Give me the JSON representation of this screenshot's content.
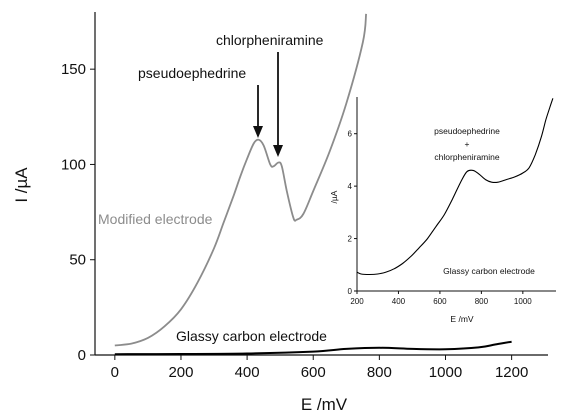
{
  "chart_data": [
    {
      "type": "line",
      "xlabel": "E /mV",
      "ylabel": "I /µA",
      "xlim": [
        -60,
        1310
      ],
      "ylim": [
        0,
        180
      ],
      "xticks": [
        0,
        200,
        400,
        600,
        800,
        1000,
        1200
      ],
      "yticks": [
        0,
        50,
        100,
        150
      ],
      "annotations": [
        "pseudoephedrine",
        "chlorpheniramine"
      ],
      "series": [
        {
          "name": "Modified electrode",
          "color": "#8c8c8c",
          "x": [
            0,
            50,
            100,
            150,
            200,
            250,
            300,
            330,
            360,
            380,
            400,
            420,
            435,
            450,
            470,
            480,
            495,
            505,
            520,
            540,
            550,
            570,
            600,
            650,
            700,
            750,
            760
          ],
          "y": [
            5,
            6,
            9,
            15,
            24,
            38,
            56,
            70,
            84,
            94,
            103,
            111,
            113,
            110,
            100,
            99,
            101,
            99,
            86,
            72,
            71,
            74,
            86,
            107,
            132,
            164,
            179
          ]
        },
        {
          "name": "Glassy carbon electrode",
          "color": "#000000",
          "x": [
            0,
            200,
            400,
            600,
            700,
            800,
            900,
            1000,
            1100,
            1150,
            1200
          ],
          "y": [
            0.4,
            0.5,
            0.8,
            1.8,
            3.2,
            3.8,
            3.2,
            3.0,
            4.0,
            5.5,
            7.0
          ]
        }
      ]
    },
    {
      "type": "line",
      "xlabel": "E /mV",
      "ylabel": "/µA",
      "xlim": [
        200,
        1160
      ],
      "ylim": [
        0,
        7.4
      ],
      "xticks": [
        200,
        400,
        600,
        800,
        1000
      ],
      "yticks": [
        0,
        2,
        4,
        6
      ],
      "annotation": [
        "pseudoephedrine",
        "+",
        "chlorpheniramine"
      ],
      "series": [
        {
          "name": "Glassy carbon electrode",
          "color": "#000000",
          "x": [
            200,
            220,
            260,
            300,
            340,
            380,
            420,
            460,
            500,
            540,
            580,
            620,
            660,
            700,
            730,
            760,
            790,
            820,
            850,
            880,
            920,
            960,
            1000,
            1030,
            1060,
            1090,
            1110,
            1130,
            1145
          ],
          "y": [
            0.72,
            0.65,
            0.63,
            0.65,
            0.72,
            0.85,
            1.05,
            1.32,
            1.65,
            2.0,
            2.45,
            2.9,
            3.5,
            4.15,
            4.55,
            4.6,
            4.45,
            4.25,
            4.15,
            4.15,
            4.25,
            4.35,
            4.5,
            4.7,
            5.2,
            5.9,
            6.5,
            7.0,
            7.35
          ]
        }
      ]
    }
  ]
}
